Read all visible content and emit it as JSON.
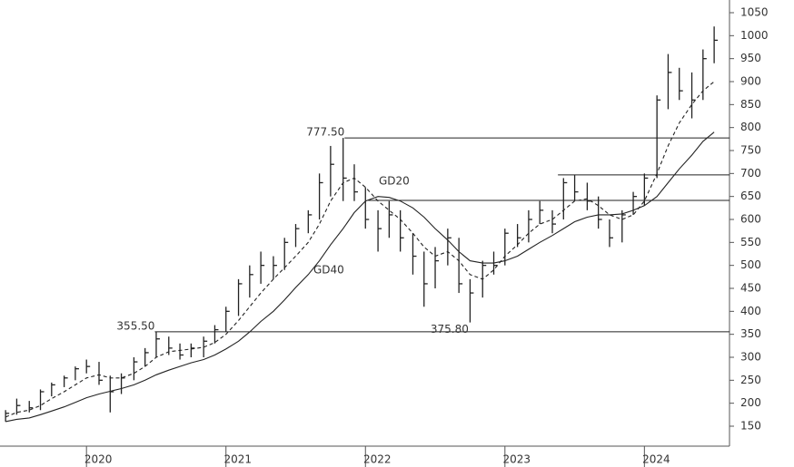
{
  "chart_data": {
    "type": "ohlc",
    "xlim": [
      2019.38,
      2024.61
    ],
    "xticks": [
      {
        "value": 2020,
        "label": "2020"
      },
      {
        "value": 2021,
        "label": "2021"
      },
      {
        "value": 2022,
        "label": "2022"
      },
      {
        "value": 2023,
        "label": "2023"
      },
      {
        "value": 2024,
        "label": "2024"
      }
    ],
    "ylim": [
      150,
      1050
    ],
    "yticks": [
      150,
      200,
      250,
      300,
      350,
      400,
      450,
      500,
      550,
      600,
      650,
      700,
      750,
      800,
      850,
      900,
      950,
      1000,
      1050
    ],
    "x": [
      2019.42,
      2019.5,
      2019.59,
      2019.67,
      2019.75,
      2019.84,
      2019.92,
      2020.0,
      2020.09,
      2020.17,
      2020.25,
      2020.34,
      2020.42,
      2020.5,
      2020.59,
      2020.67,
      2020.75,
      2020.84,
      2020.92,
      2021.0,
      2021.09,
      2021.17,
      2021.25,
      2021.34,
      2021.42,
      2021.5,
      2021.59,
      2021.67,
      2021.75,
      2021.84,
      2021.92,
      2022.0,
      2022.09,
      2022.17,
      2022.25,
      2022.34,
      2022.42,
      2022.5,
      2022.59,
      2022.67,
      2022.75,
      2022.84,
      2022.92,
      2023.0,
      2023.09,
      2023.17,
      2023.25,
      2023.34,
      2023.42,
      2023.5,
      2023.59,
      2023.67,
      2023.75,
      2023.84,
      2023.92,
      2024.0,
      2024.09,
      2024.17,
      2024.25,
      2024.34,
      2024.42,
      2024.5
    ],
    "high": [
      185,
      210,
      205,
      230,
      245,
      260,
      280,
      295,
      290,
      260,
      265,
      300,
      320,
      355.5,
      345,
      330,
      330,
      345,
      370,
      410,
      470,
      500,
      530,
      520,
      560,
      590,
      620,
      700,
      760,
      777.5,
      720,
      670,
      620,
      640,
      620,
      570,
      530,
      540,
      580,
      560,
      470,
      510,
      530,
      580,
      590,
      620,
      640,
      620,
      690,
      697,
      680,
      650,
      600,
      620,
      660,
      700,
      870,
      960,
      930,
      920,
      970,
      1020
    ],
    "low": [
      160,
      175,
      180,
      185,
      215,
      235,
      250,
      265,
      240,
      180,
      220,
      250,
      280,
      300,
      305,
      295,
      300,
      300,
      330,
      355,
      390,
      430,
      460,
      470,
      490,
      540,
      570,
      600,
      650,
      640,
      640,
      580,
      530,
      560,
      530,
      480,
      410,
      450,
      500,
      440,
      375.8,
      430,
      480,
      500,
      540,
      550,
      590,
      570,
      600,
      640,
      620,
      580,
      540,
      550,
      610,
      630,
      690,
      840,
      860,
      820,
      860,
      940
    ],
    "close": [
      178,
      195,
      190,
      225,
      240,
      255,
      275,
      280,
      250,
      225,
      255,
      290,
      310,
      340,
      320,
      305,
      320,
      335,
      360,
      400,
      460,
      480,
      500,
      500,
      550,
      580,
      610,
      680,
      720,
      690,
      660,
      600,
      580,
      610,
      560,
      520,
      460,
      510,
      560,
      460,
      440,
      500,
      500,
      570,
      560,
      600,
      620,
      590,
      680,
      660,
      640,
      600,
      560,
      610,
      650,
      690,
      860,
      920,
      880,
      860,
      950,
      990
    ],
    "color": "#222222",
    "series": [
      {
        "name": "GD20",
        "color": "#222222",
        "dashed": true,
        "values": [
          170,
          180,
          185,
          195,
          210,
          225,
          240,
          255,
          262,
          255,
          255,
          265,
          280,
          300,
          312,
          315,
          318,
          322,
          332,
          350,
          380,
          410,
          440,
          470,
          495,
          520,
          550,
          590,
          640,
          680,
          690,
          670,
          640,
          620,
          600,
          570,
          540,
          520,
          530,
          510,
          480,
          470,
          490,
          520,
          545,
          570,
          590,
          600,
          620,
          640,
          645,
          630,
          610,
          600,
          610,
          640,
          700,
          760,
          810,
          850,
          880,
          900
        ]
      },
      {
        "name": "GD40",
        "color": "#222222",
        "dashed": false,
        "values": [
          160,
          165,
          168,
          175,
          183,
          192,
          202,
          212,
          220,
          226,
          232,
          240,
          250,
          262,
          272,
          280,
          288,
          295,
          305,
          318,
          335,
          355,
          378,
          400,
          425,
          452,
          480,
          510,
          545,
          580,
          615,
          640,
          650,
          648,
          640,
          625,
          605,
          580,
          555,
          530,
          510,
          505,
          505,
          510,
          520,
          535,
          550,
          565,
          580,
          595,
          605,
          610,
          610,
          612,
          620,
          630,
          650,
          680,
          710,
          740,
          770,
          790
        ]
      }
    ],
    "levels": [
      {
        "value": 355.5,
        "label": "355.50",
        "start": 2020.49
      },
      {
        "value": 777.5,
        "label": "777.50",
        "start": 2021.85
      },
      {
        "value": 697,
        "start": 2023.38
      },
      {
        "value": 641.5,
        "start": 2022.02
      }
    ],
    "annotations": [
      {
        "x": 2022.74,
        "value": 375.8,
        "label": "375.80"
      }
    ]
  }
}
